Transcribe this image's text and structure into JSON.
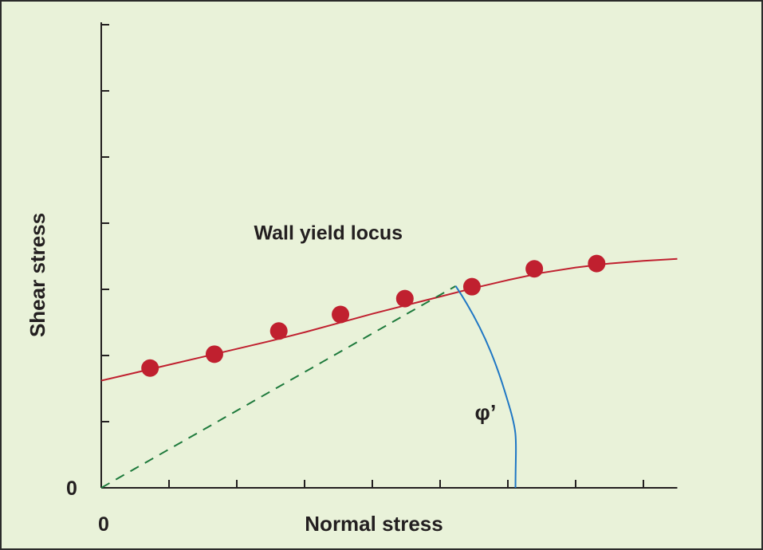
{
  "chart_data": {
    "type": "scatter",
    "title": "",
    "xlabel": "Normal stress",
    "ylabel": "Shear stress",
    "x_origin_label": "0",
    "y_origin_label": "0",
    "xlim": [
      0,
      8.5
    ],
    "ylim": [
      0,
      7
    ],
    "x_ticks": [
      1,
      2,
      3,
      4,
      5,
      6,
      7,
      8
    ],
    "y_ticks": [
      1,
      2,
      3,
      4,
      5,
      6,
      7
    ],
    "grid": false,
    "legend": "none",
    "series": [
      {
        "name": "Wall yield locus",
        "kind": "points",
        "color": "#c0202f",
        "x": [
          0.72,
          1.67,
          2.62,
          3.53,
          4.48,
          5.47,
          6.39,
          7.31
        ],
        "y": [
          1.81,
          2.02,
          2.37,
          2.62,
          2.86,
          3.04,
          3.31,
          3.39
        ]
      },
      {
        "kind": "fit-curve",
        "color": "#c0202f",
        "x": [
          0,
          0.5,
          1,
          1.5,
          2,
          2.5,
          3,
          3.5,
          4,
          4.5,
          5,
          5.5,
          6,
          6.5,
          7,
          7.5,
          8,
          8.5
        ],
        "y": [
          1.62,
          1.74,
          1.86,
          1.98,
          2.1,
          2.22,
          2.35,
          2.49,
          2.63,
          2.76,
          2.89,
          3.02,
          3.14,
          3.25,
          3.33,
          3.39,
          3.43,
          3.46
        ]
      },
      {
        "kind": "dashed-line",
        "color": "#1e7a3c",
        "x": [
          0,
          5.23
        ],
        "y": [
          0,
          3.05
        ]
      }
    ],
    "annotations": [
      {
        "text": "Wall yield locus",
        "x": 3.35,
        "y": 3.85
      },
      {
        "text": "φ’",
        "x": 5.67,
        "y": 1.15
      }
    ],
    "angle_arc": {
      "color": "#1f77c4",
      "label": "φ’"
    }
  }
}
